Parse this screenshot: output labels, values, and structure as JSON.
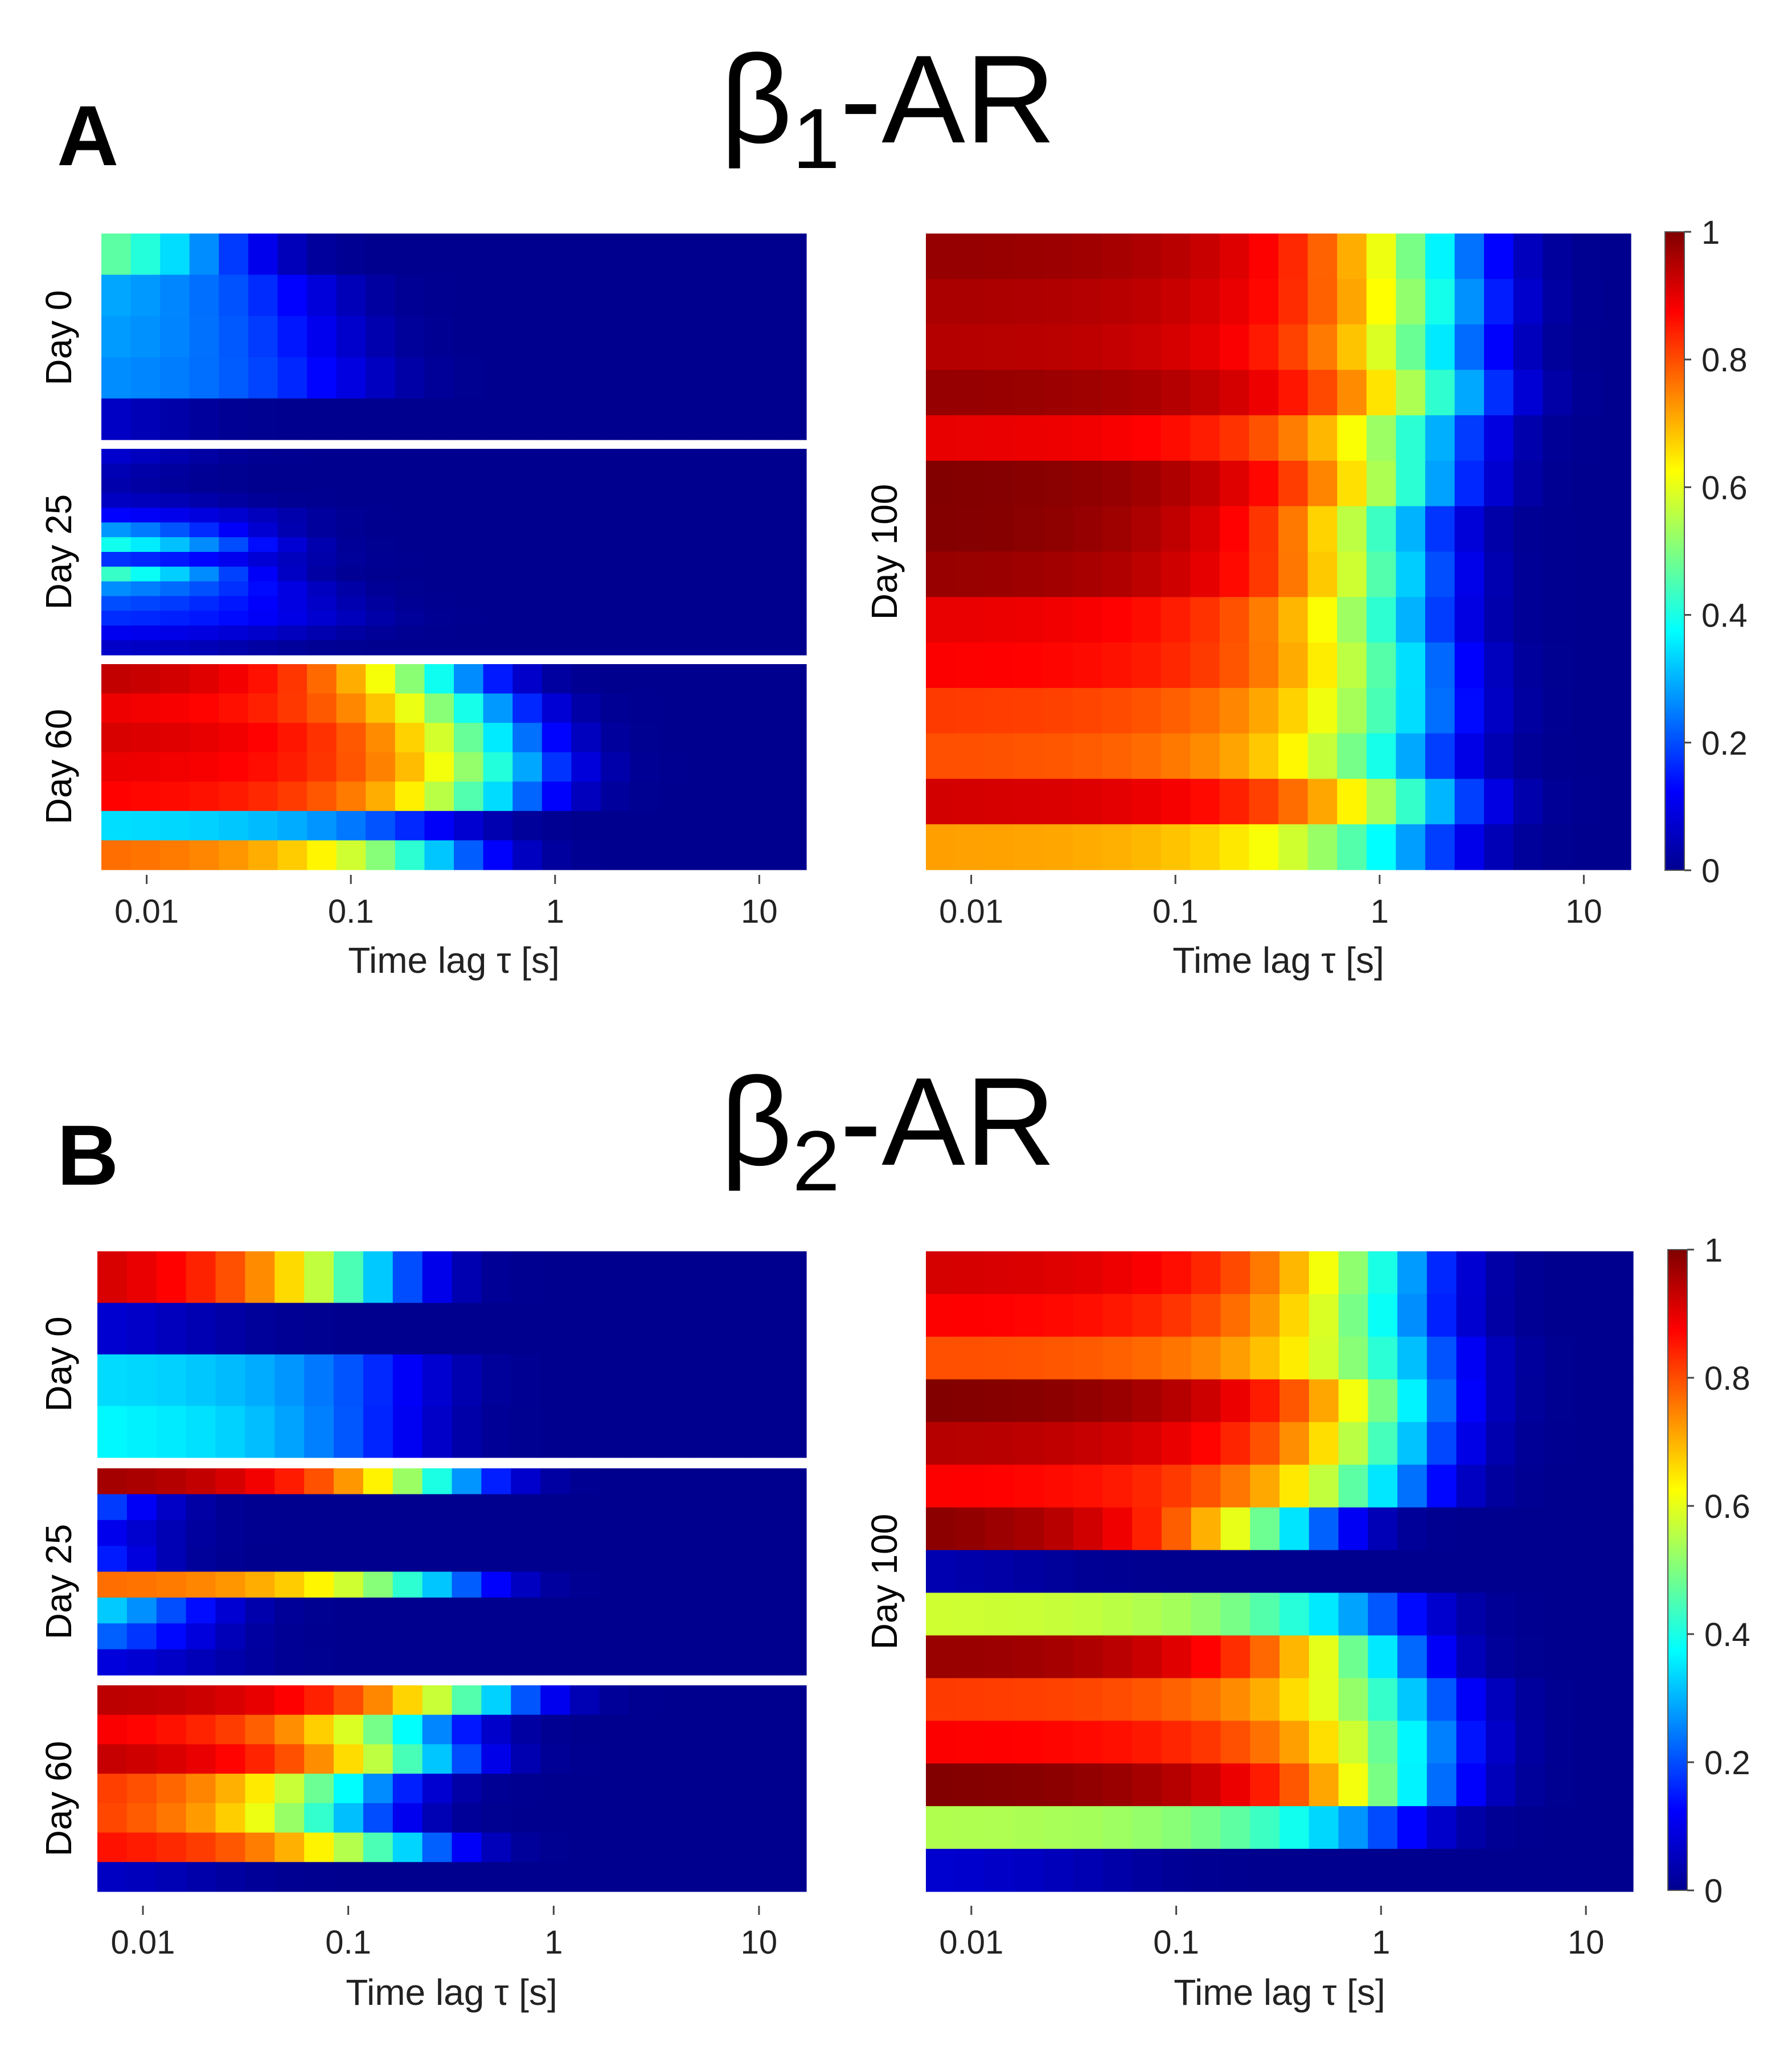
{
  "figure": {
    "panels": [
      {
        "letter": "A",
        "title_main": "β",
        "title_sub": "1",
        "title_suffix": "-AR",
        "ylabels_left": [
          "Day 0",
          "Day 25",
          "Day 60"
        ],
        "ylabel_right": "Day 100"
      },
      {
        "letter": "B",
        "title_main": "β",
        "title_sub": "2",
        "title_suffix": "-AR",
        "ylabels_left": [
          "Day 0",
          "Day 25",
          "Day 60"
        ],
        "ylabel_right": "Day 100"
      }
    ]
  },
  "chart_data": {
    "type": "heatmap",
    "colormap": "jet",
    "xlabel": "Time lag τ [s]",
    "x_scale": "log",
    "x_range": [
      0.006,
      17
    ],
    "x_ticks": [
      {
        "value": 0.01,
        "label": "0.01"
      },
      {
        "value": 0.1,
        "label": "0.1"
      },
      {
        "value": 1,
        "label": "1"
      },
      {
        "value": 10,
        "label": "10"
      }
    ],
    "colorbar": {
      "range": [
        0,
        1
      ],
      "ticks": [
        {
          "value": 0,
          "label": "0"
        },
        {
          "value": 0.2,
          "label": "0.2"
        },
        {
          "value": 0.4,
          "label": "0.4"
        },
        {
          "value": 0.6,
          "label": "0.6"
        },
        {
          "value": 0.8,
          "label": "0.8"
        },
        {
          "value": 1,
          "label": "1"
        }
      ]
    },
    "columns": 24,
    "note": "Each row: [amplitude (0-1), decay lag in seconds] of its autocorrelation-like profile",
    "A": {
      "day0": [
        [
          0.62,
          0.022
        ],
        [
          0.32,
          0.055
        ],
        [
          0.3,
          0.07
        ],
        [
          0.28,
          0.09
        ],
        [
          0.12,
          0.01
        ]
      ],
      "day25": [
        [
          0.12,
          0.012
        ],
        [
          0.1,
          0.008
        ],
        [
          0.08,
          0.008
        ],
        [
          0.08,
          0.02
        ],
        [
          0.15,
          0.035
        ],
        [
          0.35,
          0.025
        ],
        [
          0.48,
          0.03
        ],
        [
          0.2,
          0.04
        ],
        [
          0.55,
          0.025
        ],
        [
          0.3,
          0.045
        ],
        [
          0.22,
          0.06
        ],
        [
          0.18,
          0.08
        ],
        [
          0.12,
          0.06
        ],
        [
          0.08,
          0.03
        ]
      ],
      "day60": [
        [
          0.95,
          0.3
        ],
        [
          0.9,
          0.45
        ],
        [
          0.92,
          0.55
        ],
        [
          0.9,
          0.65
        ],
        [
          0.88,
          0.55
        ],
        [
          0.35,
          0.25
        ],
        [
          0.78,
          0.3
        ]
      ],
      "day100": [
        [
          0.98,
          2.0
        ],
        [
          0.96,
          2.2
        ],
        [
          0.95,
          2.0
        ],
        [
          0.98,
          2.3
        ],
        [
          0.9,
          1.8
        ],
        [
          1.0,
          1.6
        ],
        [
          1.0,
          1.2
        ],
        [
          0.98,
          1.3
        ],
        [
          0.9,
          1.3
        ],
        [
          0.88,
          1.5
        ],
        [
          0.82,
          1.6
        ],
        [
          0.8,
          1.4
        ],
        [
          0.92,
          1.8
        ],
        [
          0.72,
          1.5
        ]
      ]
    },
    "B": {
      "day0": [
        [
          0.95,
          0.13
        ],
        [
          0.1,
          0.02
        ],
        [
          0.35,
          0.18
        ],
        [
          0.38,
          0.16
        ]
      ],
      "day25": [
        [
          0.98,
          0.3
        ],
        [
          0.5,
          0.007
        ],
        [
          0.25,
          0.008
        ],
        [
          0.5,
          0.006
        ],
        [
          0.78,
          0.3
        ],
        [
          0.5,
          0.015
        ],
        [
          0.35,
          0.014
        ],
        [
          0.12,
          0.02
        ]
      ],
      "day60": [
        [
          0.95,
          0.5
        ],
        [
          0.9,
          0.22
        ],
        [
          0.95,
          0.25
        ],
        [
          0.85,
          0.12
        ],
        [
          0.85,
          0.1
        ],
        [
          0.88,
          0.2
        ],
        [
          0.08,
          0.02
        ]
      ],
      "day100": [
        [
          0.92,
          1.2
        ],
        [
          0.88,
          1.2
        ],
        [
          0.8,
          1.5
        ],
        [
          1.0,
          1.4
        ],
        [
          0.95,
          1.3
        ],
        [
          0.88,
          1.1
        ],
        [
          1.0,
          0.36
        ],
        [
          0.05,
          0.02
        ],
        [
          0.58,
          1.0
        ],
        [
          0.98,
          1.0
        ],
        [
          0.82,
          1.5
        ],
        [
          0.88,
          1.6
        ],
        [
          1.0,
          1.4
        ],
        [
          0.55,
          1.0
        ],
        [
          0.08,
          0.05
        ]
      ]
    }
  }
}
